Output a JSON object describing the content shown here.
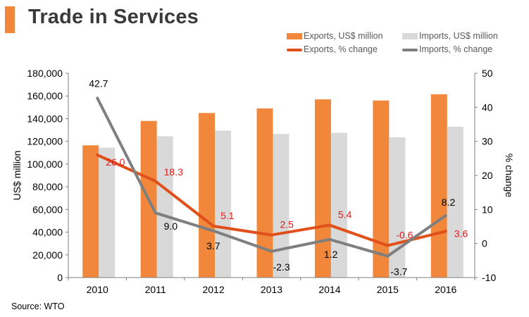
{
  "page": {
    "title": "Trade in Services",
    "source": "Source: WTO"
  },
  "colors": {
    "exports_bar": "#f0873a",
    "imports_bar": "#d9d9d9",
    "exports_line": "#e0501a",
    "imports_line": "#7f7f7f",
    "exports_label": "#e41a1a",
    "imports_label": "#000000",
    "title_accent": "#f0873a"
  },
  "legend": {
    "exports_bar": "Exports, US$ million",
    "imports_bar": "Imports, US$ million",
    "exports_line": "Exports, % change",
    "imports_line": "Imports, % change"
  },
  "chart_data": {
    "type": "bar+line",
    "title": "Trade in Services",
    "categories": [
      "2010",
      "2011",
      "2012",
      "2013",
      "2014",
      "2015",
      "2016"
    ],
    "ylabel_left": "US$ million",
    "ylabel_right": "% change",
    "ylim_left": [
      0,
      180000
    ],
    "yticks_left": [
      0,
      20000,
      40000,
      60000,
      80000,
      100000,
      120000,
      140000,
      160000,
      180000
    ],
    "yticks_left_labels": [
      "0",
      "20,000",
      "40,000",
      "60,000",
      "80,000",
      "100,000",
      "120,000",
      "140,000",
      "160,000",
      "180,000"
    ],
    "ylim_right": [
      -10,
      50
    ],
    "yticks_right": [
      -10,
      0,
      10,
      20,
      30,
      40,
      50
    ],
    "yticks_right_labels": [
      "-10",
      "0",
      "10",
      "20",
      "30",
      "40",
      "50"
    ],
    "bar_series": [
      {
        "name": "Exports, US$ million",
        "values": [
          116500,
          138000,
          145000,
          149000,
          157000,
          156000,
          161500
        ]
      },
      {
        "name": "Imports, US$ million",
        "values": [
          114500,
          124500,
          129500,
          126500,
          127500,
          123500,
          133000
        ]
      }
    ],
    "line_series": [
      {
        "name": "Exports, % change",
        "values": [
          26.0,
          18.3,
          5.1,
          2.5,
          5.4,
          -0.6,
          3.6
        ],
        "labels": [
          "26.0",
          "18.3",
          "5.1",
          "2.5",
          "5.4",
          "-0.6",
          "3.6"
        ]
      },
      {
        "name": "Imports, % change",
        "values": [
          42.7,
          9.0,
          3.7,
          -2.3,
          1.2,
          -3.7,
          8.2
        ],
        "labels": [
          "42.7",
          "9.0",
          "3.7",
          "-2.3",
          "1.2",
          "-3.7",
          "8.2"
        ]
      }
    ]
  }
}
